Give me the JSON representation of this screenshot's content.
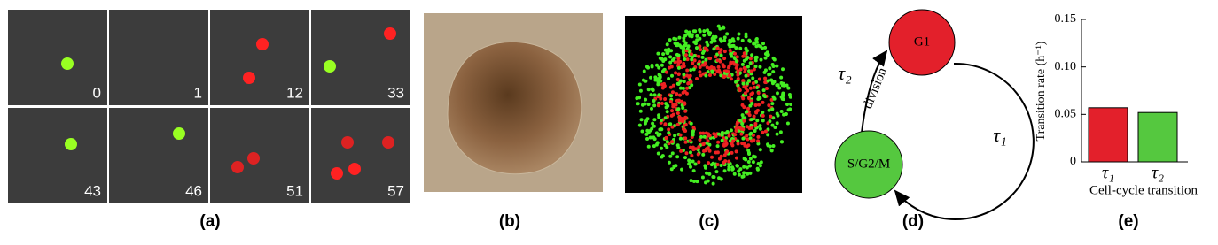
{
  "panel_a": {
    "label": "(a)",
    "frames": [
      "0",
      "1",
      "12",
      "33",
      "43",
      "46",
      "51",
      "57"
    ]
  },
  "panel_b": {
    "label": "(b)"
  },
  "panel_c": {
    "label": "(c)"
  },
  "panel_d": {
    "label": "(d)",
    "nodes": [
      "G1",
      "S/G2/M"
    ],
    "edges": [
      {
        "label": "division",
        "rate": "τ₂"
      },
      {
        "rate": "τ₁"
      }
    ]
  },
  "chart_data": {
    "type": "bar",
    "title": "(e)",
    "y_label": "Transition rate (h⁻¹)",
    "x_label": "Cell-cycle transition",
    "categories": [
      "τ₁",
      "τ₂"
    ],
    "values": [
      0.057,
      0.052
    ],
    "colors": [
      "#e3202b",
      "#55c83f"
    ],
    "ylim": [
      0,
      0.15
    ],
    "yticks": [
      0,
      0.05,
      {
        "value": 0.1,
        "label": "0.10"
      },
      0.15
    ]
  }
}
